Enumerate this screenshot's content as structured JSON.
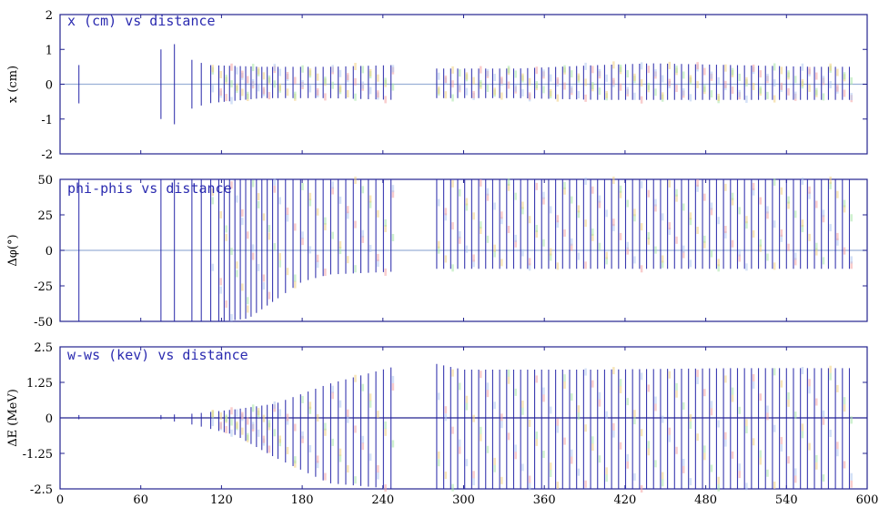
{
  "chart_data": [
    {
      "type": "scatter",
      "title": "x (cm) vs distance",
      "ylabel": "x (cm)",
      "xlim": [
        0,
        600
      ],
      "ylim": [
        -2,
        2
      ],
      "yticks": [
        2,
        1,
        0,
        -1,
        -2
      ],
      "ytick_labels": [
        "2",
        "1",
        "0",
        "-1",
        "-2"
      ],
      "grid": false,
      "series": [
        {
          "color": "#2424a8",
          "envelope_x": [
            14,
            75,
            85,
            98,
            110,
            150,
            200,
            248,
            280,
            340,
            400,
            440,
            500,
            560,
            588
          ],
          "envelope_ymax": [
            0.55,
            1.0,
            1.15,
            0.7,
            0.55,
            0.5,
            0.5,
            0.55,
            0.45,
            0.45,
            0.55,
            0.6,
            0.55,
            0.5,
            0.5
          ],
          "envelope_ymin": [
            -0.55,
            -1.0,
            -1.15,
            -0.7,
            -0.55,
            -0.4,
            -0.4,
            -0.45,
            -0.4,
            -0.4,
            -0.45,
            -0.45,
            -0.45,
            -0.45,
            -0.45
          ]
        }
      ]
    },
    {
      "type": "scatter",
      "title": "phi-phis vs distance",
      "ylabel": "Δφ(°)",
      "xlim": [
        0,
        600
      ],
      "ylim": [
        -50,
        50
      ],
      "yticks": [
        50,
        25,
        0,
        -25,
        -50
      ],
      "ytick_labels": [
        "50",
        "25",
        "0",
        "-25",
        "-50"
      ],
      "grid": false,
      "series": [
        {
          "color": "#2424a8",
          "envelope_x": [
            14,
            75,
            100,
            120,
            140,
            160,
            180,
            200,
            248,
            280,
            588
          ],
          "envelope_ymax": [
            50,
            50,
            50,
            50,
            50,
            50,
            50,
            50,
            50,
            50,
            50
          ],
          "envelope_ymin": [
            -50,
            -50,
            -50,
            -50,
            -48,
            -35,
            -22,
            -17,
            -15,
            -13,
            -13
          ]
        }
      ]
    },
    {
      "type": "scatter",
      "title": "w-ws (kev) vs distance",
      "xlabel": "",
      "ylabel": "ΔE (MeV)",
      "xlim": [
        0,
        600
      ],
      "ylim": [
        -2.5,
        2.5
      ],
      "xticks": [
        0,
        60,
        120,
        180,
        240,
        300,
        360,
        420,
        480,
        540,
        600
      ],
      "xtick_labels": [
        "0",
        "60",
        "120",
        "180",
        "240",
        "300",
        "360",
        "420",
        "480",
        "540",
        "600"
      ],
      "yticks": [
        2.5,
        1.25,
        0,
        -1.25,
        -2.5
      ],
      "ytick_labels": [
        "2.5",
        "1.25",
        "0",
        "-1.25",
        "-2.5"
      ],
      "grid": false,
      "series": [
        {
          "color": "#2424a8",
          "envelope_x": [
            14,
            75,
            100,
            130,
            160,
            200,
            248,
            280,
            300,
            400,
            500,
            588
          ],
          "envelope_ymax": [
            0.1,
            0.1,
            0.15,
            0.3,
            0.5,
            1.2,
            1.8,
            1.9,
            1.7,
            1.7,
            1.75,
            1.75
          ],
          "envelope_ymin": [
            -0.05,
            -0.05,
            -0.25,
            -0.6,
            -1.4,
            -2.3,
            -2.5,
            -2.5,
            -2.5,
            -2.5,
            -2.5,
            -2.5
          ]
        }
      ]
    }
  ]
}
